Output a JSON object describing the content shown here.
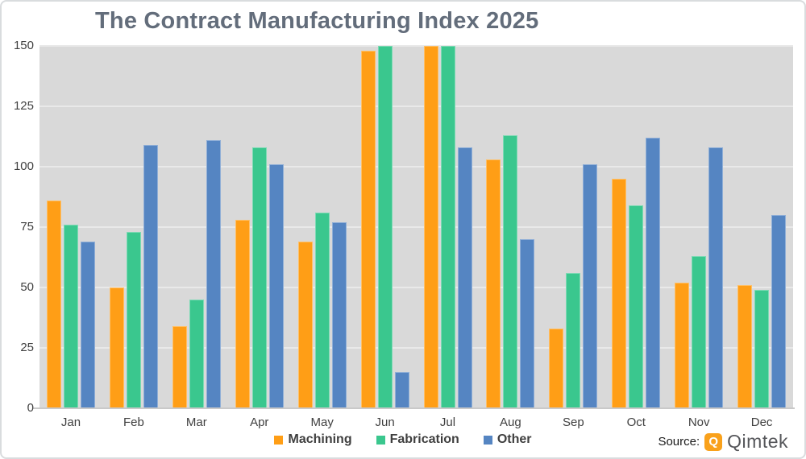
{
  "title": "The Contract Manufacturing Index 2025",
  "source": {
    "label": "Source:",
    "brand": "Qimtek",
    "logo_icon": "qimtek-logo",
    "logo_letter": "Q",
    "logo_color": "#F9A11B"
  },
  "colors": {
    "title_text": "#636D7B",
    "axis_text": "#404040",
    "plot_background": "#D9D9D9",
    "gridline": "#E9E9E9",
    "axis_line": "#C9C9C9",
    "machining": "#FF9E16",
    "fabrication": "#3AC78E",
    "other": "#5585C2"
  },
  "chart_data": {
    "type": "bar",
    "title": "The Contract Manufacturing Index 2025",
    "categories": [
      "Jan",
      "Feb",
      "Mar",
      "Apr",
      "May",
      "Jun",
      "Jul",
      "Aug",
      "Sep",
      "Oct",
      "Nov",
      "Dec"
    ],
    "series": [
      {
        "name": "Machining",
        "color": "#FF9E16",
        "values": [
          86,
          50,
          34,
          78,
          69,
          148,
          150,
          103,
          33,
          95,
          52,
          51
        ]
      },
      {
        "name": "Fabrication",
        "color": "#3AC78E",
        "values": [
          76,
          73,
          45,
          108,
          81,
          150,
          150,
          113,
          56,
          84,
          63,
          49
        ]
      },
      {
        "name": "Other",
        "color": "#5585C2",
        "values": [
          69,
          109,
          111,
          101,
          77,
          15,
          108,
          70,
          101,
          112,
          108,
          80
        ]
      }
    ],
    "xlabel": "",
    "ylabel": "",
    "ylim": [
      0,
      150
    ],
    "yticks": [
      0,
      25,
      50,
      75,
      100,
      125,
      150
    ],
    "grid": true,
    "legend_position": "bottom"
  }
}
